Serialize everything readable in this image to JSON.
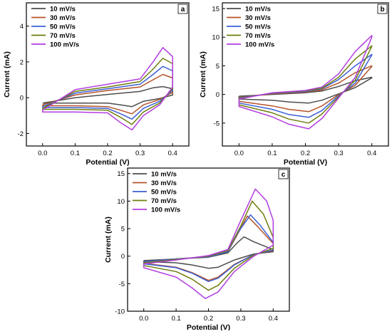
{
  "chart_data": [
    {
      "type": "line",
      "panel_label": "a",
      "xlabel": "Potential (V)",
      "ylabel": "Current (mA)",
      "xlim": [
        -0.05,
        0.45
      ],
      "ylim": [
        -2.7,
        5.3
      ],
      "xticks": [
        0.0,
        0.1,
        0.2,
        0.3,
        0.4
      ],
      "yticks": [
        -2,
        0,
        2,
        4
      ],
      "xtick_labels": [
        "0.0",
        "0.1",
        "0.2",
        "0.3",
        "0.4"
      ],
      "ytick_labels": [
        "-2",
        "0",
        "2",
        "4"
      ],
      "legend_placement": "top-left",
      "series": [
        {
          "name": "10 mV/s",
          "color": "#4d4d4d",
          "x": [
            0.0,
            0.1,
            0.2,
            0.3,
            0.34,
            0.37,
            0.4,
            0.4,
            0.36,
            0.31,
            0.275,
            0.24,
            0.2,
            0.1,
            0.0,
            0.0
          ],
          "y": [
            -0.3,
            0.0,
            0.18,
            0.35,
            0.55,
            0.62,
            0.5,
            0.15,
            -0.05,
            -0.2,
            -0.5,
            -0.4,
            -0.3,
            -0.3,
            -0.3,
            -0.3
          ]
        },
        {
          "name": "30 mV/s",
          "color": "#b5532a",
          "x": [
            0.0,
            0.1,
            0.2,
            0.3,
            0.34,
            0.37,
            0.4,
            0.4,
            0.36,
            0.31,
            0.275,
            0.24,
            0.2,
            0.1,
            0.0,
            0.0
          ],
          "y": [
            -0.4,
            0.15,
            0.4,
            0.6,
            1.0,
            1.3,
            1.1,
            0.3,
            -0.1,
            -0.4,
            -0.9,
            -0.7,
            -0.5,
            -0.45,
            -0.45,
            -0.4
          ]
        },
        {
          "name": "50 mV/s",
          "color": "#3b5fd6",
          "x": [
            0.0,
            0.1,
            0.2,
            0.3,
            0.34,
            0.37,
            0.4,
            0.4,
            0.36,
            0.31,
            0.275,
            0.24,
            0.2,
            0.1,
            0.0,
            0.0
          ],
          "y": [
            -0.5,
            0.25,
            0.5,
            0.75,
            1.3,
            1.75,
            1.5,
            0.4,
            -0.2,
            -0.6,
            -1.2,
            -0.9,
            -0.6,
            -0.55,
            -0.55,
            -0.5
          ]
        },
        {
          "name": "70 mV/s",
          "color": "#6f7d0e",
          "x": [
            0.0,
            0.1,
            0.2,
            0.3,
            0.34,
            0.37,
            0.4,
            0.4,
            0.36,
            0.31,
            0.275,
            0.24,
            0.2,
            0.1,
            0.0,
            0.0
          ],
          "y": [
            -0.6,
            0.35,
            0.6,
            0.9,
            1.6,
            2.2,
            1.9,
            0.5,
            -0.3,
            -0.8,
            -1.5,
            -1.1,
            -0.7,
            -0.65,
            -0.65,
            -0.6
          ]
        },
        {
          "name": "100 mV/s",
          "color": "#b23de0",
          "x": [
            0.0,
            0.1,
            0.2,
            0.3,
            0.34,
            0.37,
            0.4,
            0.4,
            0.36,
            0.31,
            0.275,
            0.24,
            0.2,
            0.1,
            0.0,
            0.0
          ],
          "y": [
            -0.7,
            0.45,
            0.75,
            1.05,
            2.0,
            2.8,
            2.3,
            0.6,
            -0.4,
            -1.0,
            -1.8,
            -1.4,
            -0.85,
            -0.8,
            -0.8,
            -0.7
          ]
        }
      ]
    },
    {
      "type": "line",
      "panel_label": "b",
      "xlabel": "Potential (V)",
      "ylabel": "Current (mA)",
      "xlim": [
        -0.05,
        0.45
      ],
      "ylim": [
        -9,
        16
      ],
      "xticks": [
        0.0,
        0.1,
        0.2,
        0.3,
        0.4
      ],
      "yticks": [
        -5,
        0,
        5,
        10,
        15
      ],
      "xtick_labels": [
        "0.0",
        "0.1",
        "0.2",
        "0.3",
        "0.4"
      ],
      "ytick_labels": [
        "-5",
        "0",
        "5",
        "10",
        "15"
      ],
      "legend_placement": "top-left",
      "series": [
        {
          "name": "10 mV/s",
          "color": "#4d4d4d",
          "x": [
            0.0,
            0.1,
            0.2,
            0.25,
            0.3,
            0.35,
            0.4,
            0.4,
            0.35,
            0.3,
            0.25,
            0.21,
            0.15,
            0.1,
            0.0,
            0.0
          ],
          "y": [
            -0.3,
            0.0,
            0.3,
            0.6,
            1.4,
            2.4,
            3.0,
            2.9,
            1.2,
            0.1,
            -1.0,
            -1.5,
            -1.3,
            -1.0,
            -0.8,
            -0.3
          ]
        },
        {
          "name": "30 mV/s",
          "color": "#b5532a",
          "x": [
            0.0,
            0.1,
            0.2,
            0.25,
            0.3,
            0.35,
            0.4,
            0.4,
            0.35,
            0.3,
            0.25,
            0.21,
            0.15,
            0.1,
            0.0,
            0.0
          ],
          "y": [
            -0.5,
            0.1,
            0.4,
            0.8,
            2.0,
            3.8,
            5.0,
            4.9,
            1.6,
            0.0,
            -2.0,
            -3.0,
            -2.6,
            -2.0,
            -1.2,
            -0.5
          ]
        },
        {
          "name": "50 mV/s",
          "color": "#3b5fd6",
          "x": [
            0.0,
            0.1,
            0.2,
            0.25,
            0.3,
            0.35,
            0.4,
            0.4,
            0.35,
            0.3,
            0.25,
            0.21,
            0.15,
            0.1,
            0.0,
            0.0
          ],
          "y": [
            -0.6,
            0.2,
            0.5,
            1.0,
            2.6,
            5.0,
            7.0,
            6.9,
            2.0,
            -0.2,
            -2.8,
            -4.0,
            -3.5,
            -2.6,
            -1.5,
            -0.6
          ]
        },
        {
          "name": "70 mV/s",
          "color": "#6f7d0e",
          "x": [
            0.0,
            0.1,
            0.2,
            0.25,
            0.3,
            0.35,
            0.4,
            0.4,
            0.35,
            0.3,
            0.25,
            0.21,
            0.15,
            0.1,
            0.0,
            0.0
          ],
          "y": [
            -0.7,
            0.25,
            0.6,
            1.1,
            3.0,
            6.2,
            8.5,
            8.4,
            2.5,
            -0.4,
            -3.4,
            -5.0,
            -4.3,
            -3.2,
            -1.8,
            -0.7
          ]
        },
        {
          "name": "100 mV/s",
          "color": "#b23de0",
          "x": [
            0.0,
            0.1,
            0.2,
            0.25,
            0.3,
            0.35,
            0.4,
            0.4,
            0.35,
            0.3,
            0.25,
            0.21,
            0.15,
            0.1,
            0.0,
            0.0
          ],
          "y": [
            -0.8,
            0.3,
            0.7,
            1.3,
            3.6,
            7.5,
            10.3,
            10.0,
            3.0,
            -0.6,
            -4.2,
            -6.0,
            -5.2,
            -3.9,
            -2.1,
            -0.8
          ]
        }
      ]
    },
    {
      "type": "line",
      "panel_label": "c",
      "xlabel": "Potential (V)",
      "ylabel": "Current (mA)",
      "xlim": [
        -0.05,
        0.45
      ],
      "ylim": [
        -10,
        16
      ],
      "xticks": [
        0.0,
        0.1,
        0.2,
        0.3,
        0.4
      ],
      "yticks": [
        -10,
        -5,
        0,
        5,
        10,
        15
      ],
      "xtick_labels": [
        "0.0",
        "0.1",
        "0.2",
        "0.3",
        "0.4"
      ],
      "ytick_labels": [
        "-10",
        "-5",
        "0",
        "5",
        "10",
        "15"
      ],
      "legend_placement": "top-left",
      "series": [
        {
          "name": "10 mV/s",
          "color": "#4d4d4d",
          "x": [
            0.0,
            0.1,
            0.2,
            0.26,
            0.29,
            0.31,
            0.34,
            0.4,
            0.4,
            0.34,
            0.28,
            0.23,
            0.2,
            0.15,
            0.1,
            0.0,
            0.0
          ],
          "y": [
            -0.8,
            -0.5,
            -0.2,
            0.6,
            2.5,
            3.5,
            2.6,
            1.2,
            0.8,
            0.4,
            -0.7,
            -2.0,
            -2.2,
            -1.6,
            -1.2,
            -1.0,
            -0.8
          ]
        },
        {
          "name": "30 mV/s",
          "color": "#b5532a",
          "x": [
            0.0,
            0.1,
            0.2,
            0.26,
            0.29,
            0.32,
            0.35,
            0.4,
            0.4,
            0.34,
            0.28,
            0.23,
            0.2,
            0.15,
            0.1,
            0.0,
            0.0
          ],
          "y": [
            -1.0,
            -0.5,
            -0.1,
            0.8,
            4.0,
            7.3,
            5.5,
            2.3,
            1.0,
            0.3,
            -1.5,
            -3.8,
            -4.4,
            -3.0,
            -2.0,
            -1.3,
            -1.0
          ]
        },
        {
          "name": "50 mV/s",
          "color": "#3b5fd6",
          "x": [
            0.0,
            0.1,
            0.2,
            0.26,
            0.29,
            0.33,
            0.36,
            0.4,
            0.4,
            0.34,
            0.28,
            0.23,
            0.2,
            0.15,
            0.1,
            0.0,
            0.0
          ],
          "y": [
            -1.0,
            -0.5,
            -0.1,
            0.8,
            4.2,
            7.5,
            5.6,
            2.5,
            1.1,
            0.3,
            -1.6,
            -4.0,
            -4.6,
            -3.1,
            -2.1,
            -1.4,
            -1.0
          ]
        },
        {
          "name": "70 mV/s",
          "color": "#6f7d0e",
          "x": [
            0.0,
            0.1,
            0.2,
            0.26,
            0.3,
            0.335,
            0.37,
            0.4,
            0.4,
            0.34,
            0.28,
            0.23,
            0.2,
            0.15,
            0.1,
            0.0,
            0.0
          ],
          "y": [
            -1.2,
            -0.6,
            0.0,
            1.0,
            5.5,
            10.0,
            7.6,
            3.4,
            1.4,
            0.2,
            -2.2,
            -5.3,
            -6.2,
            -4.2,
            -2.8,
            -1.7,
            -1.2
          ]
        },
        {
          "name": "100 mV/s",
          "color": "#b23de0",
          "x": [
            0.0,
            0.1,
            0.2,
            0.26,
            0.3,
            0.345,
            0.38,
            0.4,
            0.4,
            0.34,
            0.28,
            0.23,
            0.19,
            0.15,
            0.1,
            0.0,
            0.0
          ],
          "y": [
            -1.4,
            -0.7,
            0.1,
            1.2,
            6.5,
            12.2,
            10.0,
            6.5,
            2.0,
            0.0,
            -2.8,
            -6.5,
            -7.7,
            -5.8,
            -3.8,
            -2.1,
            -1.4
          ]
        }
      ]
    }
  ]
}
